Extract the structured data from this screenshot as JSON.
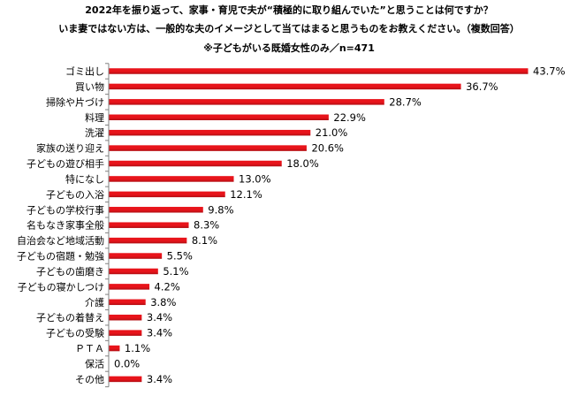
{
  "chart_data": {
    "type": "bar",
    "orientation": "horizontal",
    "title_lines": [
      "2022年を振り返って、家事・育児で夫が“積極的に取り組んでいた”と思うことは何ですか？",
      "いま妻ではない方は、一般的な夫のイメージとして当てはまると思うものをお教えください。（複数回答）",
      "※子どもがいる既婚女性のみ／n=471"
    ],
    "categories": [
      "ゴミ出し",
      "買い物",
      "掃除や片づけ",
      "料理",
      "洗濯",
      "家族の送り迎え",
      "子どもの遊び相手",
      "特になし",
      "子どもの入浴",
      "子どもの学校行事",
      "名もなき家事全般",
      "自治会など地域活動",
      "子どもの宿題・勉強",
      "子どもの歯磨き",
      "子どもの寝かしつけ",
      "介護",
      "子どもの着替え",
      "子どもの受験",
      "ＰＴＡ",
      "保活",
      "その他"
    ],
    "values": [
      43.7,
      36.7,
      28.7,
      22.9,
      21.0,
      20.6,
      18.0,
      13.0,
      12.1,
      9.8,
      8.3,
      8.1,
      5.5,
      5.1,
      4.2,
      3.8,
      3.4,
      3.4,
      1.1,
      0.0,
      3.4
    ],
    "value_labels": [
      "43.7%",
      "36.7%",
      "28.7%",
      "22.9%",
      "21.0%",
      "20.6%",
      "18.0%",
      "13.0%",
      "12.1%",
      "9.8%",
      "8.3%",
      "8.1%",
      "5.5%",
      "5.1%",
      "4.2%",
      "3.8%",
      "3.4%",
      "3.4%",
      "1.1%",
      "0.0%",
      "3.4%"
    ],
    "xlim": [
      0,
      43.7
    ],
    "unit": "%",
    "grid": false,
    "legend": "none",
    "colors": {
      "bar": "#e8141b",
      "bar_dark": "#b00d12",
      "axis": "#808080"
    }
  }
}
